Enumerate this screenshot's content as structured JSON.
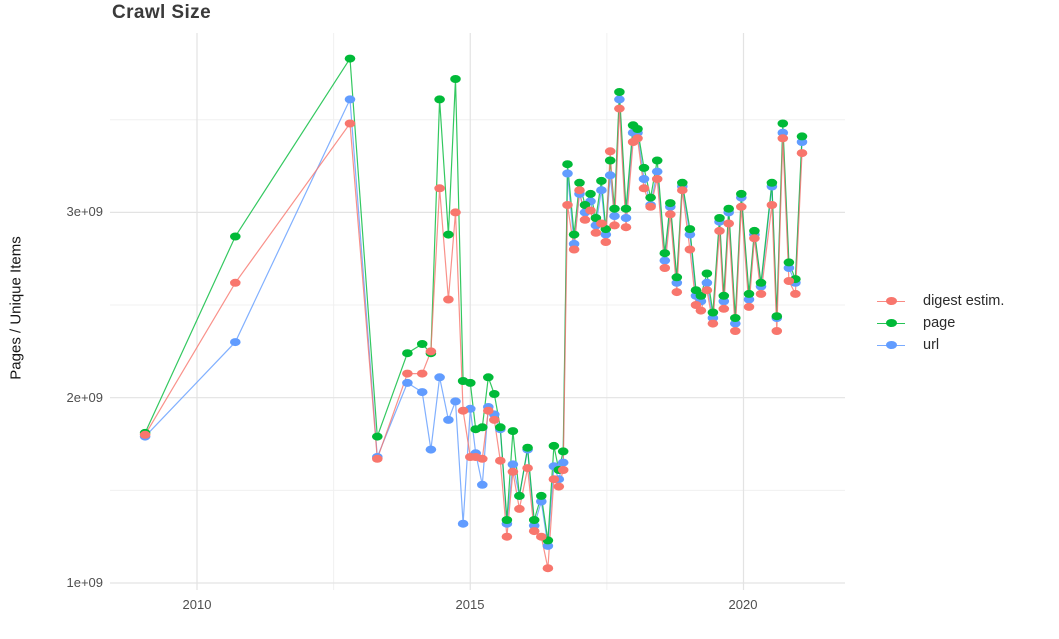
{
  "page_title": "Crawl Size",
  "chart_data": {
    "type": "line",
    "title": "Crawl Size",
    "xlabel": "",
    "ylabel": "Pages / Unique Items",
    "legend_position": "right",
    "grid": "major+minor, light gray on white",
    "x_tick_labels": [
      "2010",
      "2015",
      "2020"
    ],
    "x_ticks_years": [
      2010,
      2015,
      2020
    ],
    "y_tick_labels": [
      "1e+09",
      "2e+09",
      "3e+09"
    ],
    "y_ticks_values": [
      1000000000,
      2000000000,
      3000000000
    ],
    "x_range_years": [
      2008.4,
      2021.8
    ],
    "y_range_values": [
      950000000,
      3970000000
    ],
    "values_unit": "billions (1e9) of pages / unique items per crawl",
    "x_years": [
      2009.05,
      2010.7,
      2012.8,
      2013.3,
      2013.85,
      2014.12,
      2014.28,
      2014.44,
      2014.6,
      2014.73,
      2014.87,
      2015.0,
      2015.1,
      2015.22,
      2015.33,
      2015.44,
      2015.55,
      2015.67,
      2015.78,
      2015.9,
      2016.05,
      2016.17,
      2016.3,
      2016.42,
      2016.53,
      2016.62,
      2016.7,
      2016.78,
      2016.9,
      2017.0,
      2017.1,
      2017.2,
      2017.3,
      2017.4,
      2017.48,
      2017.56,
      2017.64,
      2017.73,
      2017.85,
      2017.98,
      2018.06,
      2018.18,
      2018.3,
      2018.42,
      2018.56,
      2018.66,
      2018.78,
      2018.88,
      2019.02,
      2019.13,
      2019.22,
      2019.33,
      2019.44,
      2019.56,
      2019.64,
      2019.73,
      2019.85,
      2019.96,
      2020.1,
      2020.2,
      2020.32,
      2020.52,
      2020.61,
      2020.72,
      2020.83,
      2020.95,
      2021.07
    ],
    "series": [
      {
        "name": "digest estim.",
        "color": "#F8766D",
        "values_1e9": [
          1.8,
          2.62,
          3.48,
          1.67,
          2.13,
          2.13,
          2.25,
          3.13,
          2.53,
          3.0,
          1.93,
          1.68,
          1.68,
          1.67,
          1.93,
          1.88,
          1.66,
          1.25,
          1.6,
          1.4,
          1.62,
          1.28,
          1.25,
          1.08,
          1.56,
          1.52,
          1.61,
          3.04,
          2.8,
          3.12,
          2.96,
          3.01,
          2.89,
          2.94,
          2.84,
          3.33,
          2.93,
          3.56,
          2.92,
          3.38,
          3.4,
          3.13,
          3.03,
          3.18,
          2.7,
          2.99,
          2.57,
          3.12,
          2.8,
          2.5,
          2.47,
          2.58,
          2.4,
          2.9,
          2.48,
          2.94,
          2.36,
          3.03,
          2.49,
          2.86,
          2.56,
          3.04,
          2.36,
          3.4,
          2.63,
          2.56,
          3.32
        ]
      },
      {
        "name": "page",
        "color": "#00BA38",
        "values_1e9": [
          1.81,
          2.87,
          3.83,
          1.79,
          2.24,
          2.29,
          2.24,
          3.61,
          2.88,
          3.72,
          2.09,
          2.08,
          1.83,
          1.84,
          2.11,
          2.02,
          1.84,
          1.34,
          1.82,
          1.47,
          1.73,
          1.34,
          1.47,
          1.23,
          1.74,
          1.61,
          1.71,
          3.26,
          2.88,
          3.16,
          3.04,
          3.1,
          2.97,
          3.17,
          2.91,
          3.28,
          3.02,
          3.65,
          3.02,
          3.47,
          3.45,
          3.24,
          3.08,
          3.28,
          2.78,
          3.05,
          2.65,
          3.16,
          2.91,
          2.58,
          2.55,
          2.67,
          2.46,
          2.97,
          2.55,
          3.02,
          2.43,
          3.1,
          2.56,
          2.9,
          2.62,
          3.16,
          2.44,
          3.48,
          2.73,
          2.64,
          3.41
        ]
      },
      {
        "name": "url",
        "color": "#619CFF",
        "values_1e9": [
          1.79,
          2.3,
          3.61,
          1.68,
          2.08,
          2.03,
          1.72,
          2.11,
          1.88,
          1.98,
          1.32,
          1.94,
          1.7,
          1.53,
          1.95,
          1.91,
          1.83,
          1.32,
          1.64,
          1.47,
          1.72,
          1.31,
          1.44,
          1.2,
          1.63,
          1.56,
          1.65,
          3.21,
          2.83,
          3.1,
          3.0,
          3.06,
          2.93,
          3.12,
          2.88,
          3.2,
          2.98,
          3.61,
          2.97,
          3.43,
          3.43,
          3.18,
          3.04,
          3.22,
          2.74,
          3.03,
          2.62,
          3.14,
          2.88,
          2.55,
          2.52,
          2.62,
          2.43,
          2.95,
          2.52,
          3.0,
          2.4,
          3.08,
          2.53,
          2.88,
          2.6,
          3.14,
          2.43,
          3.43,
          2.7,
          2.62,
          3.38
        ]
      }
    ]
  }
}
